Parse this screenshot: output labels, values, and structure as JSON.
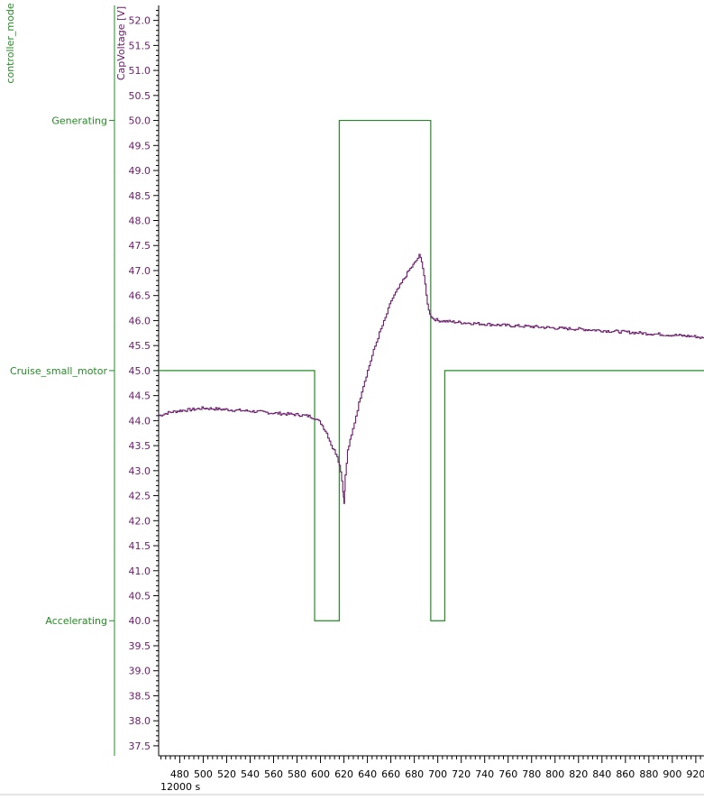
{
  "chart_data": {
    "type": "line",
    "x_unit_label": "s",
    "x_offset_label": "12000 s",
    "x_ticks": [
      480,
      500,
      520,
      540,
      560,
      580,
      600,
      620,
      640,
      660,
      680,
      700,
      720,
      740,
      760,
      780,
      800,
      820,
      840,
      860,
      880,
      900,
      920
    ],
    "x_range": [
      462,
      927
    ],
    "axes": [
      {
        "name": "controller_mode",
        "label": "controller_mode",
        "color": "#238c23",
        "categories": [
          {
            "label": "Generating",
            "value": 50.0
          },
          {
            "label": "Cruise_small_motor",
            "value": 45.0
          },
          {
            "label": "Accelerating",
            "value": 40.0
          }
        ]
      },
      {
        "name": "CapVoltage",
        "label": "CapVoltage [V]",
        "color": "#6a1b6a",
        "ylim": [
          37.3,
          52.3
        ],
        "major_ticks": [
          37.5,
          38.0,
          38.5,
          39.0,
          39.5,
          40.0,
          40.5,
          41.0,
          41.5,
          42.0,
          42.5,
          43.0,
          43.5,
          44.0,
          44.5,
          45.0,
          45.5,
          46.0,
          46.5,
          47.0,
          47.5,
          48.0,
          48.5,
          49.0,
          49.5,
          50.0,
          50.5,
          51.0,
          51.5,
          52.0
        ]
      }
    ],
    "series": [
      {
        "name": "controller_mode",
        "color": "#238c23",
        "step": true,
        "points": [
          [
            462,
            45.0
          ],
          [
            595,
            45.0
          ],
          [
            595,
            40.0
          ],
          [
            616,
            40.0
          ],
          [
            616,
            50.0
          ],
          [
            694,
            50.0
          ],
          [
            694,
            40.0
          ],
          [
            706,
            40.0
          ],
          [
            706,
            45.0
          ],
          [
            927,
            45.0
          ]
        ]
      },
      {
        "name": "CapVoltage",
        "color": "#6a1b6a",
        "points": [
          [
            462,
            44.1
          ],
          [
            470,
            44.16
          ],
          [
            480,
            44.2
          ],
          [
            490,
            44.22
          ],
          [
            500,
            44.25
          ],
          [
            520,
            44.22
          ],
          [
            540,
            44.19
          ],
          [
            560,
            44.15
          ],
          [
            580,
            44.12
          ],
          [
            590,
            44.09
          ],
          [
            595,
            44.05
          ],
          [
            600,
            43.95
          ],
          [
            605,
            43.75
          ],
          [
            610,
            43.45
          ],
          [
            614,
            43.3
          ],
          [
            617,
            43.0
          ],
          [
            619,
            42.6
          ],
          [
            620,
            42.35
          ],
          [
            621,
            42.9
          ],
          [
            623,
            43.4
          ],
          [
            626,
            43.7
          ],
          [
            630,
            44.1
          ],
          [
            635,
            44.6
          ],
          [
            640,
            45.0
          ],
          [
            645,
            45.4
          ],
          [
            650,
            45.75
          ],
          [
            655,
            46.05
          ],
          [
            660,
            46.4
          ],
          [
            665,
            46.6
          ],
          [
            670,
            46.8
          ],
          [
            675,
            47.0
          ],
          [
            680,
            47.15
          ],
          [
            684,
            47.3
          ],
          [
            686,
            47.2
          ],
          [
            688,
            46.9
          ],
          [
            690,
            46.5
          ],
          [
            692,
            46.2
          ],
          [
            695,
            46.05
          ],
          [
            700,
            46.0
          ],
          [
            720,
            45.96
          ],
          [
            740,
            45.93
          ],
          [
            760,
            45.9
          ],
          [
            780,
            45.88
          ],
          [
            800,
            45.85
          ],
          [
            820,
            45.83
          ],
          [
            840,
            45.8
          ],
          [
            860,
            45.77
          ],
          [
            880,
            45.74
          ],
          [
            900,
            45.71
          ],
          [
            920,
            45.68
          ],
          [
            927,
            45.64
          ]
        ]
      }
    ]
  }
}
